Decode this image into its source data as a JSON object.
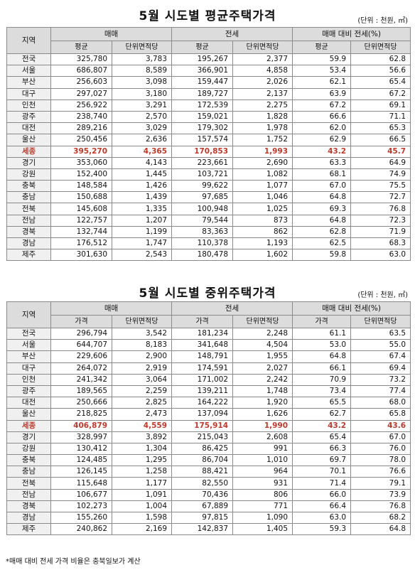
{
  "table1": {
    "title": "5월 시도별 평균주택가격",
    "unit": "(단위 : 천원, ㎡)",
    "region_header": "지역",
    "groups": [
      "매매",
      "전세",
      "매매 대비 전세(%)"
    ],
    "subheaders": [
      "평균",
      "단위면적당",
      "평균",
      "단위면적당",
      "평균",
      "단위면적당"
    ],
    "rows": [
      [
        "전국",
        "325,780",
        "3,783",
        "195,267",
        "2,377",
        "59.9",
        "62.8"
      ],
      [
        "서울",
        "686,807",
        "8,589",
        "366,901",
        "4,858",
        "53.4",
        "56.6"
      ],
      [
        "부산",
        "256,603",
        "3,098",
        "159,447",
        "2,026",
        "62.1",
        "65.4"
      ],
      [
        "대구",
        "297,027",
        "3,180",
        "189,727",
        "2,137",
        "63.9",
        "67.2"
      ],
      [
        "인천",
        "256,922",
        "3,291",
        "172,539",
        "2,275",
        "67.2",
        "69.1"
      ],
      [
        "광주",
        "238,740",
        "2,570",
        "159,021",
        "1,828",
        "66.6",
        "71.1"
      ],
      [
        "대전",
        "289,216",
        "3,029",
        "179,302",
        "1,978",
        "62.0",
        "65.3"
      ],
      [
        "울산",
        "250,456",
        "2,636",
        "157,574",
        "1,752",
        "62.9",
        "66.5"
      ],
      [
        "세종",
        "395,270",
        "4,365",
        "170,853",
        "1,993",
        "43.2",
        "45.7"
      ],
      [
        "경기",
        "353,060",
        "4,143",
        "223,661",
        "2,690",
        "63.3",
        "64.9"
      ],
      [
        "강원",
        "152,400",
        "1,445",
        "103,721",
        "1,082",
        "68.1",
        "74.9"
      ],
      [
        "충북",
        "148,584",
        "1,426",
        "99,622",
        "1,077",
        "67.0",
        "75.5"
      ],
      [
        "충남",
        "150,688",
        "1,439",
        "97,685",
        "1,046",
        "64.8",
        "72.7"
      ],
      [
        "전북",
        "145,608",
        "1,335",
        "100,948",
        "1,025",
        "69.3",
        "76.8"
      ],
      [
        "전남",
        "122,757",
        "1,207",
        "79,544",
        "873",
        "64.8",
        "72.3"
      ],
      [
        "경북",
        "132,744",
        "1,199",
        "83,363",
        "862",
        "62.8",
        "71.9"
      ],
      [
        "경남",
        "176,512",
        "1,747",
        "110,378",
        "1,193",
        "62.5",
        "68.3"
      ],
      [
        "제주",
        "301,630",
        "2,543",
        "180,478",
        "1,602",
        "59.8",
        "63.0"
      ]
    ]
  },
  "table2": {
    "title": "5월 시도별 중위주택가격",
    "unit": "(단위 : 천원, ㎡)",
    "region_header": "지역",
    "groups": [
      "매매",
      "전세",
      "매매 대비 전세(%)"
    ],
    "subheaders": [
      "가격",
      "단위면적당",
      "가격",
      "단위면적당",
      "가격",
      "단위면적당"
    ],
    "rows": [
      [
        "전국",
        "296,794",
        "3,542",
        "181,234",
        "2,248",
        "61.1",
        "63.5"
      ],
      [
        "서울",
        "644,707",
        "8,183",
        "341,648",
        "4,504",
        "53.0",
        "55.0"
      ],
      [
        "부산",
        "229,606",
        "2,900",
        "148,791",
        "1,955",
        "64.8",
        "67.4"
      ],
      [
        "대구",
        "264,072",
        "2,919",
        "174,591",
        "2,027",
        "66.1",
        "69.4"
      ],
      [
        "인천",
        "241,342",
        "3,064",
        "171,002",
        "2,242",
        "70.9",
        "73.2"
      ],
      [
        "광주",
        "189,565",
        "2,259",
        "139,211",
        "1,748",
        "73.4",
        "77.4"
      ],
      [
        "대전",
        "250,666",
        "2,825",
        "164,222",
        "1,920",
        "65.5",
        "68.0"
      ],
      [
        "울산",
        "218,825",
        "2,473",
        "137,094",
        "1,626",
        "62.7",
        "65.8"
      ],
      [
        "세종",
        "406,879",
        "4,559",
        "175,914",
        "1,990",
        "43.2",
        "43.6"
      ],
      [
        "경기",
        "328,997",
        "3,892",
        "215,043",
        "2,608",
        "65.4",
        "67.0"
      ],
      [
        "강원",
        "130,412",
        "1,304",
        "86,425",
        "991",
        "66.3",
        "76.0"
      ],
      [
        "충북",
        "124,485",
        "1,295",
        "86,704",
        "1,010",
        "69.7",
        "78.0"
      ],
      [
        "충남",
        "126,145",
        "1,258",
        "88,421",
        "964",
        "70.1",
        "76.6"
      ],
      [
        "전북",
        "115,648",
        "1,177",
        "82,550",
        "931",
        "71.4",
        "79.1"
      ],
      [
        "전남",
        "106,677",
        "1,091",
        "70,436",
        "806",
        "66.0",
        "73.9"
      ],
      [
        "경북",
        "102,273",
        "1,004",
        "67,889",
        "771",
        "66.4",
        "76.8"
      ],
      [
        "경남",
        "155,260",
        "1,598",
        "97,815",
        "1,090",
        "63.0",
        "68.2"
      ],
      [
        "제주",
        "240,862",
        "2,169",
        "142,837",
        "1,405",
        "59.3",
        "64.8"
      ]
    ]
  },
  "highlight_region": "세종",
  "highlight_color": "#c0392b",
  "footnote": "*매매 대비 전세 가격 비율은 충북일보가 계산"
}
